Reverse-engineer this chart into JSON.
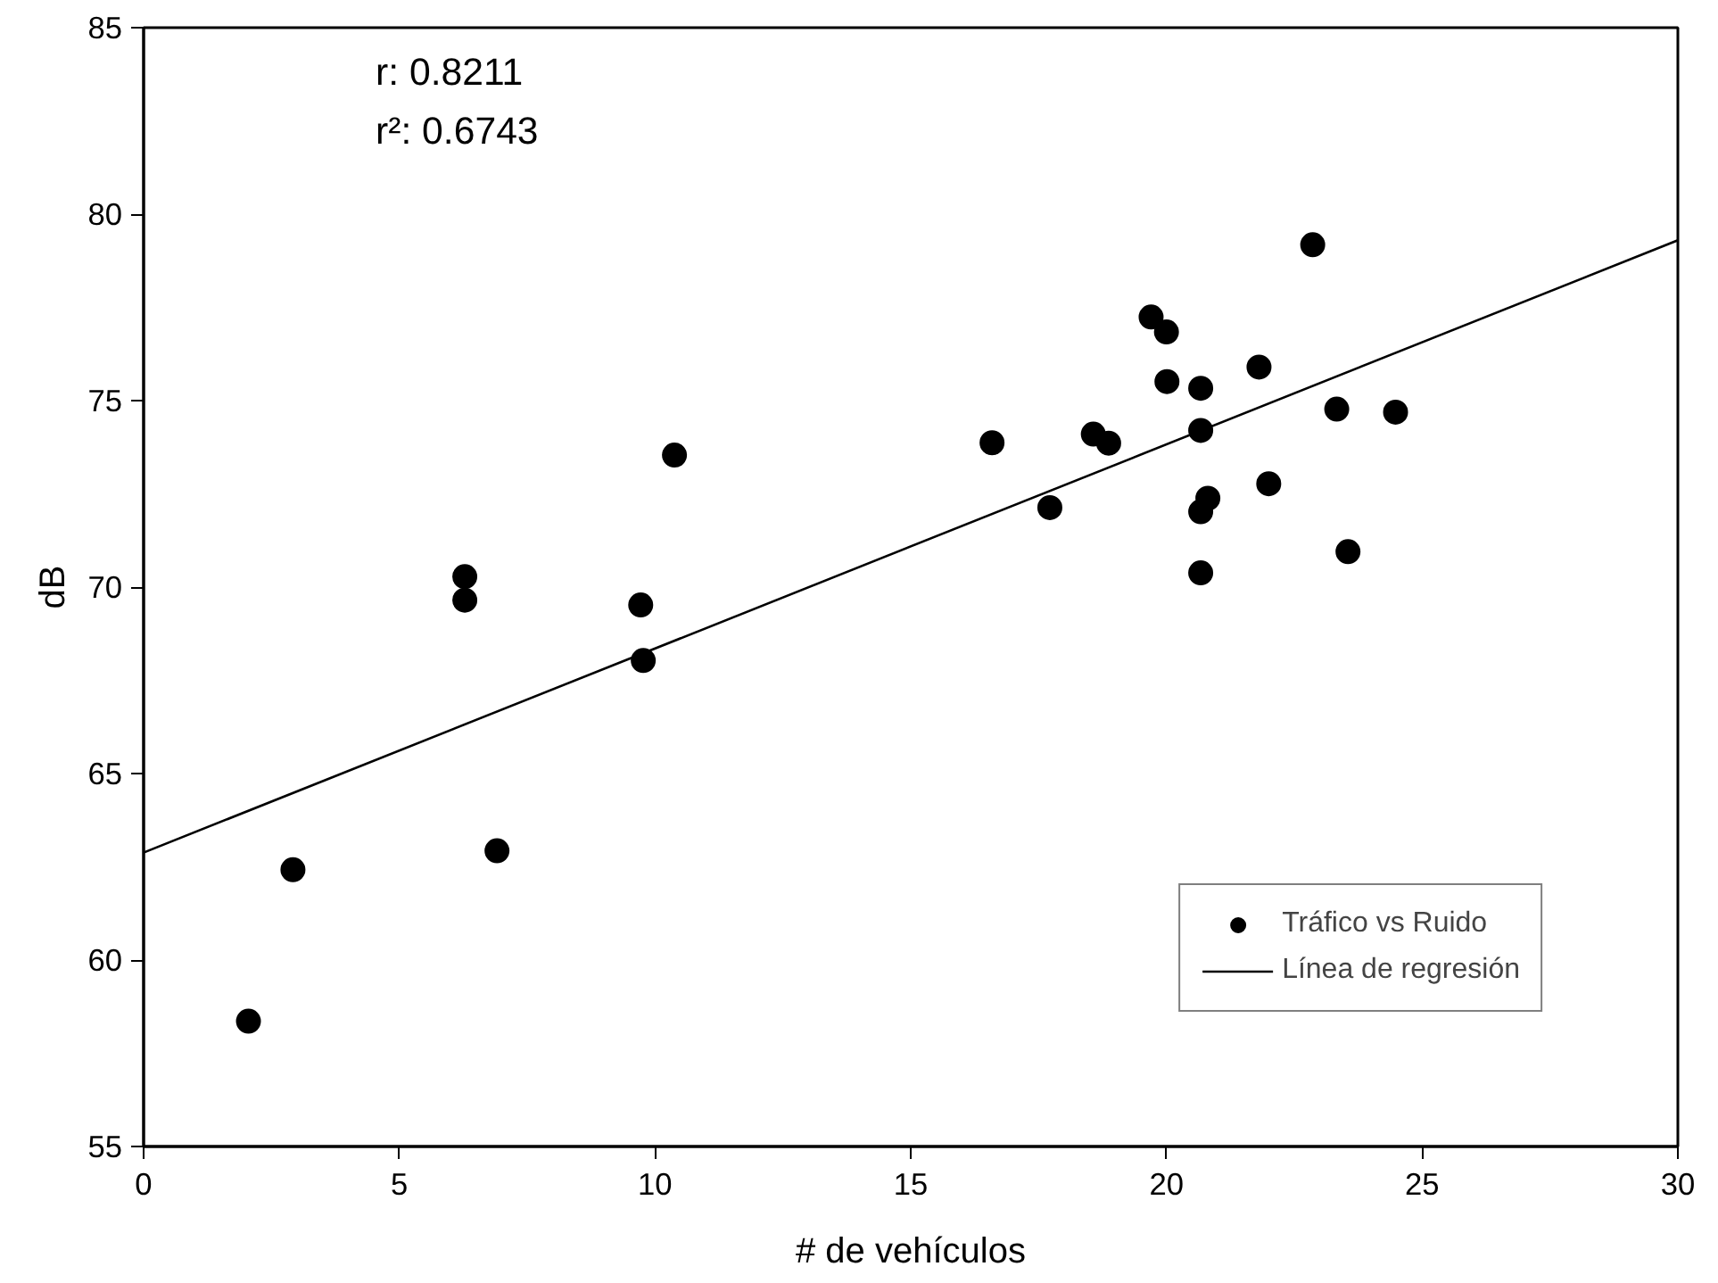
{
  "chart_data": {
    "type": "scatter",
    "xlabel": "# de vehículos",
    "ylabel": "dB",
    "xlim": [
      0,
      30
    ],
    "ylim": [
      55,
      85
    ],
    "xticks": [
      0,
      5,
      10,
      15,
      20,
      25,
      30
    ],
    "yticks": [
      55,
      60,
      65,
      70,
      75,
      80,
      85
    ],
    "grid": false,
    "legend": "bottom right",
    "annotations": [
      "r: 0.8211",
      "r²: 0.6743"
    ],
    "series": [
      {
        "name": "Tráfico vs Ruido",
        "marker": "circle",
        "color": "#000000",
        "x": [
          2.05,
          2.92,
          6.28,
          6.28,
          6.91,
          9.72,
          9.77,
          10.38,
          16.59,
          17.72,
          18.57,
          18.87,
          19.7,
          20.0,
          20.01,
          20.67,
          20.67,
          20.81,
          20.67,
          20.67,
          21.81,
          22.0,
          22.86,
          23.33,
          24.48,
          23.55
        ],
        "values": [
          58.36,
          62.42,
          70.28,
          69.65,
          62.93,
          69.52,
          68.03,
          73.54,
          73.87,
          72.13,
          74.1,
          73.86,
          77.24,
          76.84,
          75.51,
          75.33,
          74.2,
          72.38,
          72.02,
          70.38,
          75.9,
          72.77,
          79.18,
          74.77,
          74.69,
          70.95
        ]
      },
      {
        "name": "Línea de regresión",
        "type": "line",
        "line_style": "solid",
        "color": "#000000",
        "x": [
          0,
          30
        ],
        "values": [
          62.88,
          79.3
        ]
      }
    ]
  }
}
